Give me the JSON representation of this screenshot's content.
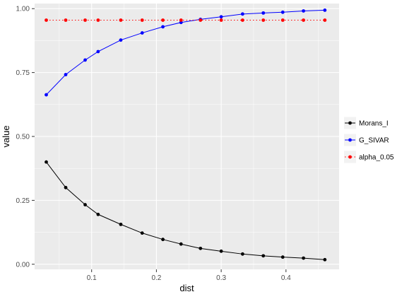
{
  "chart_data": {
    "type": "line",
    "xlabel": "dist",
    "ylabel": "value",
    "xlim": [
      0.012,
      0.482
    ],
    "ylim": [
      -0.02,
      1.02
    ],
    "x_ticks": [
      {
        "value": 0.1,
        "label": "0.1"
      },
      {
        "value": 0.2,
        "label": "0.2"
      },
      {
        "value": 0.3,
        "label": "0.3"
      },
      {
        "value": 0.4,
        "label": "0.4"
      }
    ],
    "y_ticks": [
      {
        "value": 0.0,
        "label": "0.00"
      },
      {
        "value": 0.25,
        "label": "0.25"
      },
      {
        "value": 0.5,
        "label": "0.50"
      },
      {
        "value": 0.75,
        "label": "0.75"
      },
      {
        "value": 1.0,
        "label": "1.00"
      }
    ],
    "x": [
      0.03,
      0.06,
      0.09,
      0.11,
      0.145,
      0.178,
      0.21,
      0.238,
      0.268,
      0.3,
      0.333,
      0.365,
      0.395,
      0.427,
      0.46
    ],
    "series": [
      {
        "name": "Morans_I",
        "color": "#000000",
        "line_style": "solid",
        "values": [
          0.4,
          0.3,
          0.233,
          0.195,
          0.156,
          0.122,
          0.097,
          0.079,
          0.062,
          0.051,
          0.04,
          0.033,
          0.028,
          0.024,
          0.018
        ]
      },
      {
        "name": "G_SIVAR",
        "color": "#0000FF",
        "line_style": "solid",
        "values": [
          0.663,
          0.742,
          0.799,
          0.832,
          0.877,
          0.905,
          0.929,
          0.946,
          0.958,
          0.968,
          0.979,
          0.983,
          0.986,
          0.991,
          0.994
        ]
      },
      {
        "name": "alpha_0.05",
        "color": "#FF0000",
        "line_style": "dotted",
        "values": [
          0.955,
          0.955,
          0.955,
          0.955,
          0.955,
          0.955,
          0.955,
          0.955,
          0.955,
          0.955,
          0.955,
          0.955,
          0.955,
          0.955,
          0.955
        ]
      }
    ],
    "grid": true,
    "panel_background": "#EBEBEB",
    "grid_color": "#FFFFFF",
    "legend_placement": "right"
  }
}
